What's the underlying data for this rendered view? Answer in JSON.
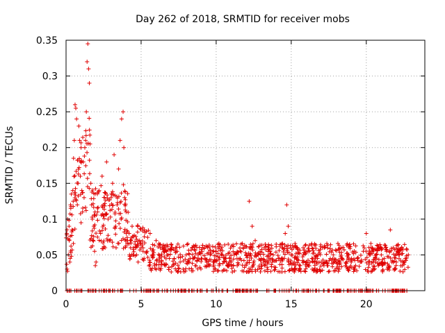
{
  "chart_data": {
    "type": "scatter",
    "title": "Day 262 of 2018, SRMTID for receiver mobs",
    "xlabel": "GPS time / hours",
    "ylabel": "SRMTID / TECUs",
    "xlim": [
      0,
      23.9
    ],
    "ylim": [
      0,
      0.35
    ],
    "x_ticks": [
      0,
      5,
      10,
      15,
      20
    ],
    "x_tick_labels": [
      "0",
      "5",
      "10",
      "15",
      "20"
    ],
    "y_ticks": [
      0,
      0.05,
      0.1,
      0.15,
      0.2,
      0.25,
      0.3,
      0.35
    ],
    "y_tick_labels": [
      "0",
      "0.05",
      "0.1",
      "0.15",
      "0.2",
      "0.25",
      "0.3",
      "0.35"
    ],
    "grid": true,
    "marker": "+",
    "color": "#e00000",
    "series": [
      {
        "name": "SRMTID",
        "x_range": [
          0,
          22.8
        ],
        "notes": "dense cloud of several thousand samples; representative values listed"
      }
    ],
    "points": [
      [
        0.05,
        0.08
      ],
      [
        0.1,
        0.1
      ],
      [
        0.15,
        0.05
      ],
      [
        0.2,
        0.09
      ],
      [
        0.25,
        0.04
      ],
      [
        0.3,
        0.12
      ],
      [
        0.35,
        0.135
      ],
      [
        0.4,
        0.085
      ],
      [
        0.45,
        0.14
      ],
      [
        0.5,
        0.185
      ],
      [
        0.55,
        0.21
      ],
      [
        0.6,
        0.26
      ],
      [
        0.65,
        0.255
      ],
      [
        0.7,
        0.24
      ],
      [
        0.75,
        0.12
      ],
      [
        0.8,
        0.15
      ],
      [
        0.85,
        0.23
      ],
      [
        0.9,
        0.21
      ],
      [
        0.95,
        0.16
      ],
      [
        1.0,
        0.2
      ],
      [
        1.05,
        0.14
      ],
      [
        1.1,
        0.11
      ],
      [
        1.15,
        0.18
      ],
      [
        1.2,
        0.13
      ],
      [
        1.25,
        0.2
      ],
      [
        1.3,
        0.21
      ],
      [
        1.35,
        0.25
      ],
      [
        1.4,
        0.32
      ],
      [
        1.45,
        0.345
      ],
      [
        1.5,
        0.31
      ],
      [
        1.55,
        0.29
      ],
      [
        1.6,
        0.205
      ],
      [
        1.65,
        0.15
      ],
      [
        1.7,
        0.12
      ],
      [
        1.75,
        0.1
      ],
      [
        1.8,
        0.07
      ],
      [
        1.85,
        0.09
      ],
      [
        1.9,
        0.055
      ],
      [
        1.95,
        0.035
      ],
      [
        2.0,
        0.04
      ],
      [
        2.1,
        0.11
      ],
      [
        2.2,
        0.14
      ],
      [
        2.3,
        0.08
      ],
      [
        2.4,
        0.16
      ],
      [
        2.5,
        0.12
      ],
      [
        2.6,
        0.06
      ],
      [
        2.7,
        0.18
      ],
      [
        2.8,
        0.1
      ],
      [
        2.9,
        0.07
      ],
      [
        3.0,
        0.13
      ],
      [
        3.1,
        0.15
      ],
      [
        3.2,
        0.19
      ],
      [
        3.3,
        0.09
      ],
      [
        3.4,
        0.12
      ],
      [
        3.5,
        0.17
      ],
      [
        3.6,
        0.21
      ],
      [
        3.7,
        0.24
      ],
      [
        3.8,
        0.25
      ],
      [
        3.85,
        0.2
      ],
      [
        3.9,
        0.13
      ],
      [
        4.0,
        0.11
      ],
      [
        4.1,
        0.07
      ],
      [
        4.2,
        0.08
      ],
      [
        4.3,
        0.06
      ],
      [
        4.4,
        0.09
      ],
      [
        4.5,
        0.05
      ],
      [
        4.6,
        0.065
      ],
      [
        4.7,
        0.05
      ],
      [
        4.8,
        0.04
      ],
      [
        4.9,
        0.07
      ],
      [
        5.0,
        0.06
      ],
      [
        5.2,
        0.045
      ],
      [
        5.4,
        0.055
      ],
      [
        5.6,
        0.08
      ],
      [
        5.8,
        0.05
      ],
      [
        6.0,
        0.07
      ],
      [
        6.2,
        0.04
      ],
      [
        6.4,
        0.06
      ],
      [
        6.6,
        0.035
      ],
      [
        6.8,
        0.05
      ],
      [
        7.0,
        0.065
      ],
      [
        7.2,
        0.045
      ],
      [
        7.4,
        0.055
      ],
      [
        7.6,
        0.04
      ],
      [
        7.8,
        0.03
      ],
      [
        8.0,
        0.05
      ],
      [
        8.2,
        0.04
      ],
      [
        8.4,
        0.06
      ],
      [
        8.6,
        0.035
      ],
      [
        8.8,
        0.05
      ],
      [
        9.0,
        0.045
      ],
      [
        9.2,
        0.06
      ],
      [
        9.4,
        0.035
      ],
      [
        9.6,
        0.05
      ],
      [
        9.8,
        0.04
      ],
      [
        10.0,
        0.055
      ],
      [
        10.2,
        0.035
      ],
      [
        10.4,
        0.05
      ],
      [
        10.6,
        0.045
      ],
      [
        10.8,
        0.065
      ],
      [
        11.0,
        0.04
      ],
      [
        11.2,
        0.05
      ],
      [
        11.4,
        0.035
      ],
      [
        11.6,
        0.045
      ],
      [
        11.8,
        0.06
      ],
      [
        12.0,
        0.05
      ],
      [
        12.2,
        0.125
      ],
      [
        12.4,
        0.09
      ],
      [
        12.6,
        0.07
      ],
      [
        12.8,
        0.05
      ],
      [
        13.0,
        0.045
      ],
      [
        13.2,
        0.06
      ],
      [
        13.4,
        0.04
      ],
      [
        13.6,
        0.055
      ],
      [
        13.8,
        0.05
      ],
      [
        14.0,
        0.065
      ],
      [
        14.2,
        0.045
      ],
      [
        14.4,
        0.06
      ],
      [
        14.6,
        0.08
      ],
      [
        14.7,
        0.12
      ],
      [
        14.8,
        0.09
      ],
      [
        15.0,
        0.05
      ],
      [
        15.2,
        0.04
      ],
      [
        15.4,
        0.06
      ],
      [
        15.6,
        0.035
      ],
      [
        15.8,
        0.05
      ],
      [
        16.0,
        0.04
      ],
      [
        16.2,
        0.055
      ],
      [
        16.4,
        0.03
      ],
      [
        16.6,
        0.045
      ],
      [
        16.8,
        0.05
      ],
      [
        17.0,
        0.04
      ],
      [
        17.2,
        0.06
      ],
      [
        17.4,
        0.035
      ],
      [
        17.6,
        0.045
      ],
      [
        17.8,
        0.05
      ],
      [
        18.0,
        0.04
      ],
      [
        18.2,
        0.03
      ],
      [
        18.4,
        0.045
      ],
      [
        18.6,
        0.035
      ],
      [
        18.8,
        0.05
      ],
      [
        19.0,
        0.04
      ],
      [
        19.2,
        0.03
      ],
      [
        19.4,
        0.045
      ],
      [
        19.6,
        0.04
      ],
      [
        19.8,
        0.055
      ],
      [
        20.0,
        0.08
      ],
      [
        20.2,
        0.05
      ],
      [
        20.4,
        0.06
      ],
      [
        20.6,
        0.04
      ],
      [
        20.8,
        0.035
      ],
      [
        21.0,
        0.05
      ],
      [
        21.2,
        0.045
      ],
      [
        21.4,
        0.03
      ],
      [
        21.6,
        0.085
      ],
      [
        21.8,
        0.06
      ],
      [
        22.0,
        0.04
      ],
      [
        22.2,
        0.05
      ],
      [
        22.4,
        0.035
      ],
      [
        22.6,
        0.045
      ],
      [
        22.8,
        0.05
      ]
    ]
  }
}
